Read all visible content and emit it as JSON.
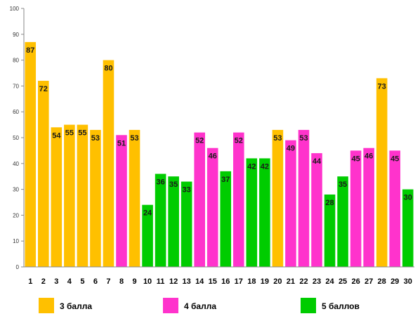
{
  "chart_data": {
    "type": "bar",
    "title": "",
    "xlabel": "",
    "ylabel": "",
    "ylim": [
      0,
      100
    ],
    "yticks": [
      0,
      10,
      20,
      30,
      40,
      50,
      60,
      70,
      80,
      90,
      100
    ],
    "grid": false,
    "legend_position": "bottom",
    "categories": [
      "1",
      "2",
      "3",
      "4",
      "5",
      "6",
      "7",
      "8",
      "9",
      "10",
      "11",
      "12",
      "13",
      "14",
      "15",
      "16",
      "17",
      "18",
      "19",
      "20",
      "21",
      "22",
      "23",
      "24",
      "25",
      "26",
      "27",
      "28",
      "29",
      "30"
    ],
    "values": [
      87,
      72,
      54,
      55,
      55,
      53,
      80,
      51,
      53,
      24,
      36,
      35,
      33,
      52,
      46,
      37,
      52,
      42,
      42,
      53,
      49,
      53,
      44,
      28,
      35,
      45,
      46,
      73,
      45,
      30
    ],
    "groups": [
      "g3",
      "g3",
      "g3",
      "g3",
      "g3",
      "g3",
      "g3",
      "g4",
      "g3",
      "g5",
      "g5",
      "g5",
      "g5",
      "g4",
      "g4",
      "g5",
      "g4",
      "g5",
      "g5",
      "g3",
      "g4",
      "g4",
      "g4",
      "g5",
      "g5",
      "g4",
      "g4",
      "g3",
      "g4",
      "g5"
    ],
    "legend": [
      {
        "key": "g3",
        "label": "3 балла",
        "color": "#FFC000"
      },
      {
        "key": "g4",
        "label": "4 балла",
        "color": "#FF33CC"
      },
      {
        "key": "g5",
        "label": "5 баллов",
        "color": "#00CC00"
      }
    ]
  }
}
